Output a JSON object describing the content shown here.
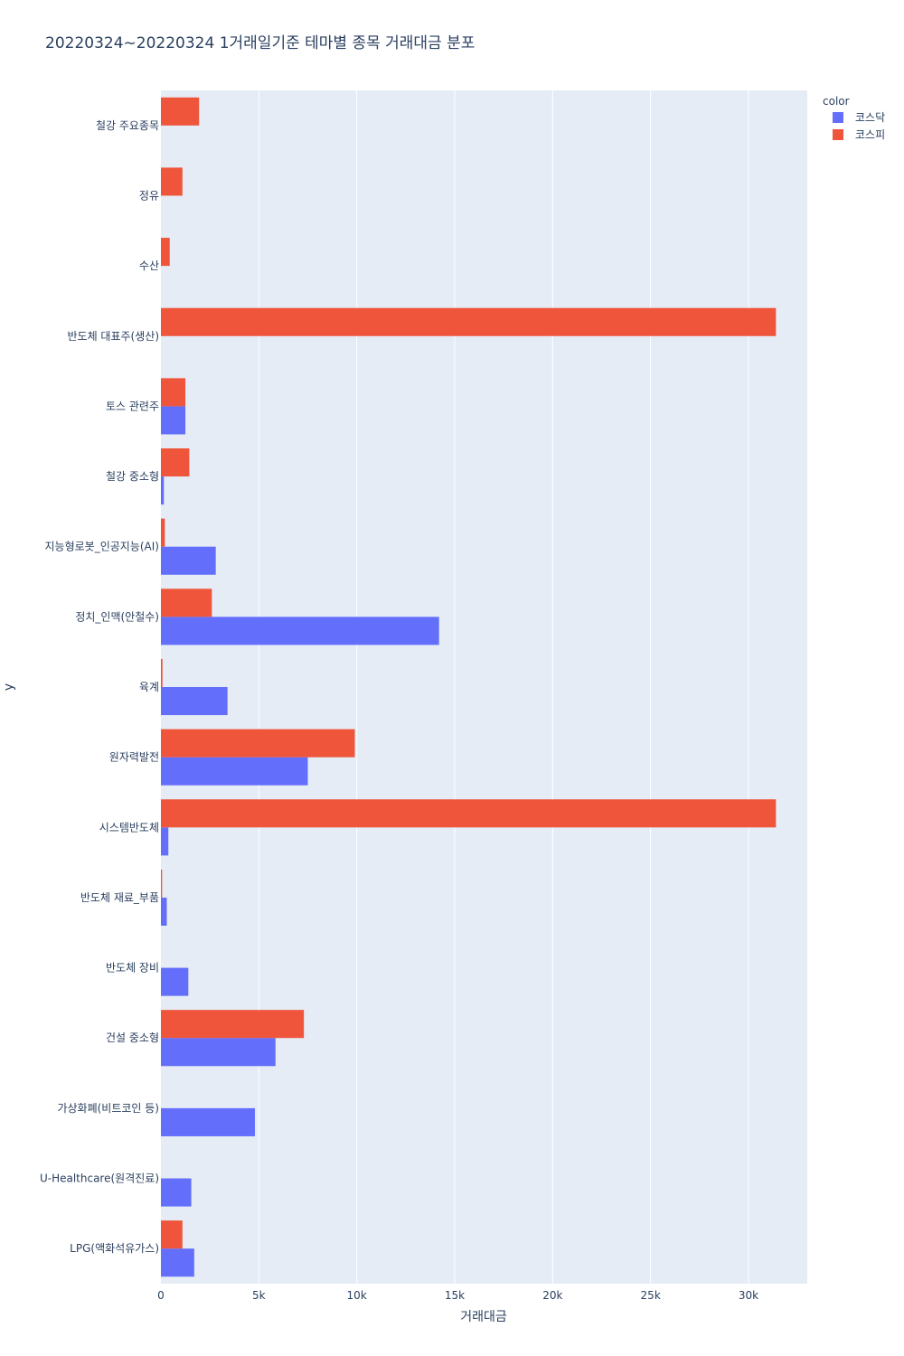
{
  "chart_data": {
    "type": "bar",
    "orientation": "horizontal",
    "barmode": "group",
    "title": "20220324~20220324 1거래일기준 테마별 종목 거래대금 분포",
    "xlabel": "거래대금",
    "ylabel": "y",
    "xlim": [
      0,
      33000
    ],
    "xticks": [
      0,
      5000,
      10000,
      15000,
      20000,
      25000,
      30000
    ],
    "xtick_labels": [
      "0",
      "5k",
      "10k",
      "15k",
      "20k",
      "25k",
      "30k"
    ],
    "grid": true,
    "legend_title": "color",
    "legend_position": "top-right",
    "categories": [
      "철강 주요종목",
      "정유",
      "수산",
      "반도체 대표주(생산)",
      "토스 관련주",
      "철강 중소형",
      "지능형로봇_인공지능(AI)",
      "정치_인맥(안철수)",
      "육계",
      "원자력발전",
      "시스템반도체",
      "반도체 재료_부품",
      "반도체 장비",
      "건설 중소형",
      "가상화폐(비트코인 등)",
      "U-Healthcare(원격진료)",
      "LPG(액화석유가스)"
    ],
    "series": [
      {
        "name": "코스닥",
        "color": "#636efa",
        "values": [
          0,
          0,
          0,
          0,
          1250,
          150,
          2800,
          14200,
          3400,
          7500,
          380,
          300,
          1400,
          5850,
          4800,
          1550,
          1700
        ]
      },
      {
        "name": "코스피",
        "color": "#ef553b",
        "values": [
          1950,
          1100,
          450,
          31400,
          1250,
          1450,
          200,
          2600,
          80,
          9900,
          31400,
          60,
          0,
          7300,
          0,
          0,
          1100
        ]
      }
    ]
  }
}
